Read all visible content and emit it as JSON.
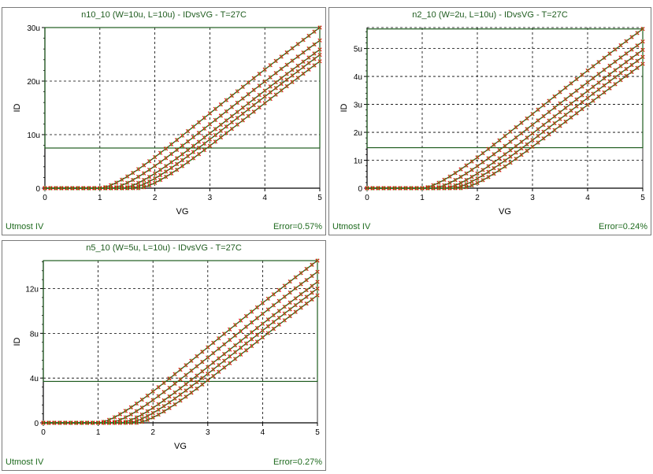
{
  "chart_data": [
    {
      "type": "line",
      "title": "n10_10 (W=10u, L=10u) - IDvsVG - T=27C",
      "xlabel": "VG",
      "ylabel": "ID",
      "xlim": [
        0,
        5
      ],
      "ylim": [
        0,
        30
      ],
      "xticks": [
        "0",
        "1",
        "2",
        "3",
        "4",
        "5"
      ],
      "yticks": [
        {
          "v": 0,
          "label": "0"
        },
        {
          "v": 10,
          "label": "10u"
        },
        {
          "v": 20,
          "label": "20u"
        },
        {
          "v": 30,
          "label": "30u"
        }
      ],
      "grid": true,
      "window": {
        "x": [
          0,
          5
        ],
        "y": [
          7.5,
          30
        ]
      },
      "footer_left": "Utmost IV",
      "footer_right": "Error=0.57%",
      "vth": [
        1.0,
        1.2,
        1.4,
        1.55,
        1.7
      ],
      "end_values": [
        30.0,
        27.6,
        25.9,
        24.9,
        23.7
      ]
    },
    {
      "type": "line",
      "title": "n2_10 (W=2u, L=10u) - IDvsVG - T=27C",
      "xlabel": "VG",
      "ylabel": "ID",
      "xlim": [
        0,
        5
      ],
      "ylim": [
        0,
        5.75
      ],
      "xticks": [
        "0",
        "1",
        "2",
        "3",
        "4",
        "5"
      ],
      "yticks": [
        {
          "v": 0,
          "label": "0"
        },
        {
          "v": 1,
          "label": "1u"
        },
        {
          "v": 2,
          "label": "2u"
        },
        {
          "v": 3,
          "label": "3u"
        },
        {
          "v": 4,
          "label": "4u"
        },
        {
          "v": 5,
          "label": "5u"
        }
      ],
      "grid": true,
      "window": {
        "x": [
          0,
          5
        ],
        "y": [
          1.45,
          5.7
        ]
      },
      "footer_left": "Utmost IV",
      "footer_right": "Error=0.24%",
      "vth": [
        1.0,
        1.2,
        1.4,
        1.55,
        1.7
      ],
      "end_values": [
        5.7,
        5.25,
        4.95,
        4.7,
        4.45
      ]
    },
    {
      "type": "line",
      "title": "n5_10 (W=5u, L=10u) - IDvsVG - T=27C",
      "xlabel": "VG",
      "ylabel": "ID",
      "xlim": [
        0,
        5
      ],
      "ylim": [
        0,
        14.5
      ],
      "xticks": [
        "0",
        "1",
        "2",
        "3",
        "4",
        "5"
      ],
      "yticks": [
        {
          "v": 0,
          "label": "0"
        },
        {
          "v": 4,
          "label": "4u"
        },
        {
          "v": 8,
          "label": "8u"
        },
        {
          "v": 12,
          "label": "12u"
        }
      ],
      "grid": true,
      "window": {
        "x": [
          0,
          5
        ],
        "y": [
          3.7,
          14.5
        ]
      },
      "footer_left": "Utmost IV",
      "footer_right": "Error=0.27%",
      "vth": [
        1.0,
        1.2,
        1.4,
        1.55,
        1.7
      ],
      "end_values": [
        14.5,
        13.5,
        12.6,
        12.0,
        11.4
      ]
    }
  ],
  "colors": {
    "measured": "#e00000",
    "simulated": "#33cc33",
    "window": "#1f5c1f",
    "grid": "#000000",
    "footer": "#1f6b1f"
  }
}
